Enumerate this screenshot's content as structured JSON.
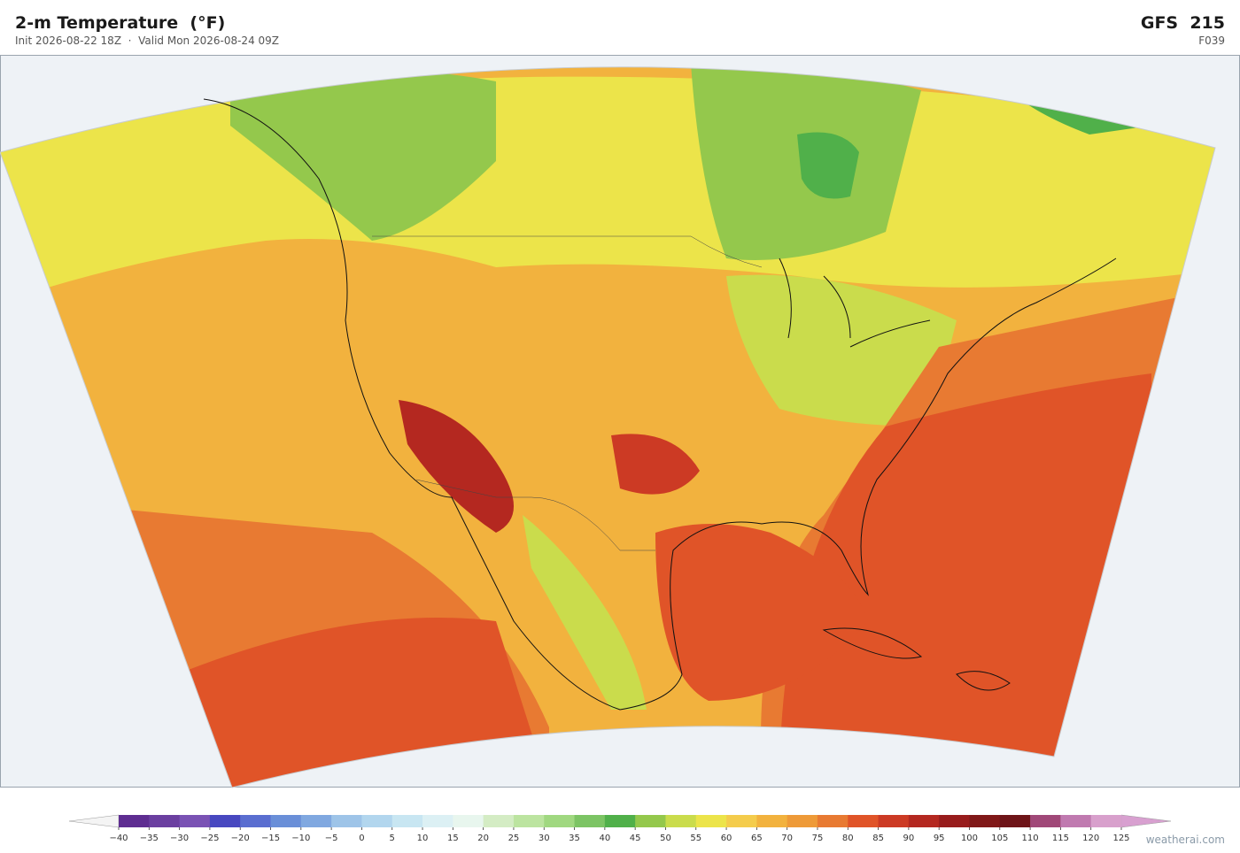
{
  "header": {
    "title": "2-m Temperature  (°F)",
    "subtitle": "Init 2026-08-22 18Z  ·  Valid Mon 2026-08-24 09Z",
    "model": "GFS  215",
    "forecast_hour": "F039"
  },
  "colorbar": {
    "ticks": [
      {
        "value": -40,
        "label": "−40"
      },
      {
        "value": -35,
        "label": "−35"
      },
      {
        "value": -30,
        "label": "−30"
      },
      {
        "value": -25,
        "label": "−25"
      },
      {
        "value": -20,
        "label": "−20"
      },
      {
        "value": -15,
        "label": "−15"
      },
      {
        "value": -10,
        "label": "−10"
      },
      {
        "value": -5,
        "label": "−5"
      },
      0,
      5,
      10,
      15,
      20,
      25,
      30,
      35,
      40,
      45,
      50,
      55,
      60,
      65,
      70,
      75,
      80,
      85,
      90,
      95,
      100,
      105,
      110,
      115,
      120,
      125
    ],
    "colors": [
      "#5e2d91",
      "#6b3fa0",
      "#7a52b4",
      "#4848c0",
      "#5a6ed0",
      "#6a8fd8",
      "#80a8e0",
      "#9ec4e8",
      "#b2d6ee",
      "#c8e6f2",
      "#dcf0f4",
      "#e8f6ee",
      "#d4ecc4",
      "#bce4a0",
      "#a0d880",
      "#7cc464",
      "#50b04a",
      "#94c84c",
      "#cadc4c",
      "#ece44a",
      "#f4cc4c",
      "#f2b23e",
      "#ee9a38",
      "#e87a32",
      "#e05428",
      "#cc3a24",
      "#b42820",
      "#981c1c",
      "#801818",
      "#6e1418",
      "#a04878",
      "#c07ab0",
      "#d8a0cc"
    ],
    "extend_colors": [
      "#f4f4f4",
      "#d8a0d0"
    ]
  },
  "footer": {
    "credit": "weatherai.com"
  }
}
